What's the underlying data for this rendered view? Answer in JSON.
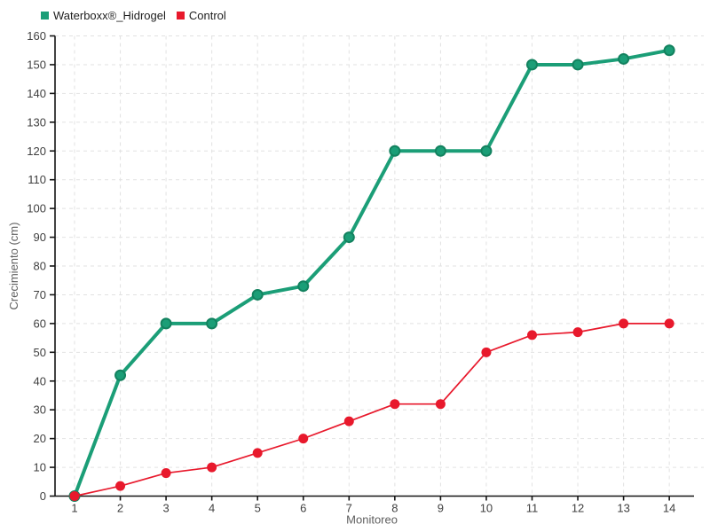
{
  "chart_data": {
    "type": "line",
    "x": [
      1,
      2,
      3,
      4,
      5,
      6,
      7,
      8,
      9,
      10,
      11,
      12,
      13,
      14
    ],
    "xlabel": "Monitoreo",
    "ylabel": "Crecimiento (cm)",
    "ylim": [
      0,
      160
    ],
    "ytick_step": 10,
    "grid": true,
    "grid_style": "dashed",
    "legend_position": "top-left",
    "series": [
      {
        "name": "Waterboxx®_Hidrogel",
        "color": "#1b9e77",
        "marker_stroke": "#13825f",
        "line_width": 4,
        "marker_radius": 5.5,
        "values": [
          0,
          42,
          60,
          60,
          70,
          73,
          90,
          120,
          120,
          120,
          150,
          150,
          152,
          155
        ]
      },
      {
        "name": "Control",
        "color": "#e8192c",
        "marker_stroke": "#e8192c",
        "line_width": 1.7,
        "marker_radius": 5,
        "values": [
          0,
          3.5,
          8,
          10,
          15,
          20,
          26,
          32,
          32,
          50,
          56,
          57,
          60,
          60
        ]
      }
    ]
  }
}
